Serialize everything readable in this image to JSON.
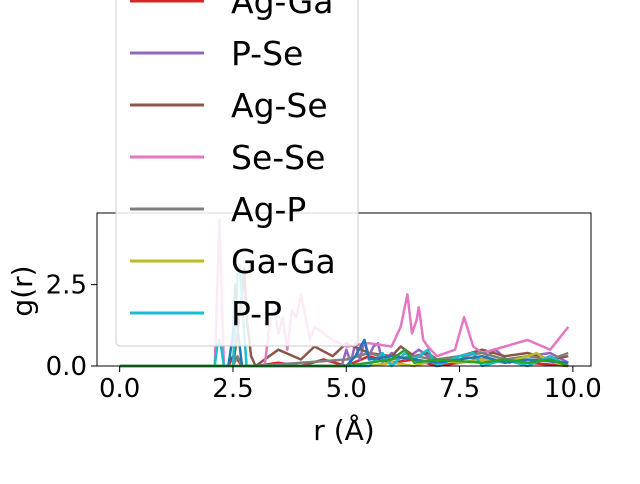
{
  "chart_data": {
    "type": "line",
    "xlabel": "r (Å)",
    "ylabel": "g(r)",
    "xlim": [
      -0.5,
      10.4
    ],
    "ylim": [
      0,
      4.7
    ],
    "xticks": [
      0.0,
      2.5,
      5.0,
      7.5,
      10.0
    ],
    "xtick_labels": [
      "0.0",
      "2.5",
      "5.0",
      "7.5",
      "10.0"
    ],
    "yticks": [
      0.0,
      2.5
    ],
    "ytick_labels": [
      "0.0",
      "2.5"
    ],
    "grid": false,
    "legend_position": "upper-left, overflowing top of axes",
    "series": [
      {
        "name": "Ag-Ga",
        "color": "#d62728",
        "x": [
          0,
          2.2,
          2.4,
          2.5,
          2.6,
          2.7,
          3.0,
          3.5,
          4.0,
          4.5,
          5.0,
          5.5,
          6.0,
          6.5,
          7.0,
          8.0,
          9.0,
          9.9
        ],
        "y": [
          0,
          0,
          0,
          0.3,
          0.2,
          0,
          0,
          0.1,
          0,
          0.2,
          0,
          0.3,
          0.1,
          0.2,
          0,
          0.2,
          0.1,
          0
        ]
      },
      {
        "name": "P-Se",
        "color": "#9467bd",
        "x": [
          0,
          3.0,
          4.9,
          5.0,
          5.1,
          5.2,
          5.3,
          5.4,
          5.5,
          5.6,
          5.7,
          5.8,
          6.0,
          6.3,
          6.6,
          7.0,
          7.5,
          8.0,
          8.3,
          8.6,
          9.0,
          9.5,
          9.9
        ],
        "y": [
          0,
          0,
          0,
          0.5,
          0.1,
          0.7,
          0.2,
          0.8,
          0.3,
          0.6,
          0.7,
          0.1,
          0.4,
          0.2,
          0.5,
          0.1,
          0.3,
          0.2,
          0.5,
          0.1,
          0.3,
          0.4,
          0.1
        ]
      },
      {
        "name": "Ag-Se",
        "color": "#8c564b",
        "x": [
          0,
          2.5,
          2.6,
          2.7,
          2.75,
          2.8,
          2.9,
          3.0,
          3.5,
          4.0,
          4.3,
          4.7,
          5.0,
          5.5,
          6.0,
          6.2,
          6.5,
          6.8,
          7.0,
          7.5,
          8.0,
          8.5,
          9.0,
          9.5,
          9.9
        ],
        "y": [
          0,
          0,
          1.0,
          2.2,
          3.0,
          1.5,
          0.3,
          0,
          0.5,
          0.2,
          0.6,
          0.3,
          0.7,
          0.4,
          0.3,
          0.6,
          0.3,
          0.4,
          0.2,
          0.3,
          0.5,
          0.3,
          0.4,
          0.2,
          0.3
        ]
      },
      {
        "name": "Se-Se",
        "color": "#e377c2",
        "x": [
          0,
          2.1,
          2.2,
          2.3,
          3.2,
          3.3,
          3.4,
          3.5,
          3.6,
          3.7,
          3.8,
          3.9,
          4.0,
          4.2,
          4.3,
          4.5,
          4.7,
          5.0,
          5.5,
          6.0,
          6.2,
          6.35,
          6.45,
          6.55,
          6.6,
          6.7,
          6.8,
          7.0,
          7.4,
          7.6,
          7.8,
          8.0,
          8.5,
          9.0,
          9.5,
          9.9
        ],
        "y": [
          0,
          0,
          4.5,
          0,
          0,
          1.2,
          1.8,
          1.0,
          1.5,
          0.5,
          1.7,
          1.5,
          2.2,
          0.8,
          1.2,
          1.0,
          0.8,
          0.6,
          0.7,
          0.6,
          1.2,
          2.2,
          1.0,
          1.4,
          1.8,
          0.8,
          0.6,
          0.3,
          0.5,
          1.5,
          0.6,
          0.4,
          0.6,
          0.8,
          0.5,
          1.2
        ]
      },
      {
        "name": "Ag-P",
        "color": "#7f7f7f",
        "x": [
          0,
          2.5,
          2.6,
          2.7,
          3.0,
          4.0,
          5.0,
          5.5,
          6.0,
          6.5,
          7.0,
          7.5,
          8.0,
          8.5,
          9.0,
          9.5,
          9.9
        ],
        "y": [
          0,
          0,
          0.3,
          0,
          0,
          0.1,
          0.2,
          0.4,
          0.2,
          0.3,
          0.2,
          0.3,
          0.4,
          0.2,
          0.3,
          0.2,
          0.4
        ]
      },
      {
        "name": "Ga-Ga",
        "color": "#bcbd22",
        "x": [
          0,
          5.5,
          6.0,
          6.5,
          7.0,
          7.5,
          8.0,
          8.5,
          9.0,
          9.2,
          9.4,
          9.6,
          9.9
        ],
        "y": [
          0,
          0,
          0.1,
          0,
          0.2,
          0.1,
          0.2,
          0.1,
          0.3,
          0.4,
          0.2,
          0.1,
          0
        ]
      },
      {
        "name": "P-P",
        "color": "#17becf",
        "x": [
          0,
          2.1,
          2.15,
          2.2,
          2.25,
          2.3,
          2.5,
          2.6,
          2.65,
          2.7,
          2.8,
          3.0,
          5.5,
          5.8,
          6.0,
          6.3,
          6.5,
          6.8,
          7.0,
          7.5,
          7.8,
          8.0,
          8.5,
          9.0,
          9.5,
          9.9
        ],
        "y": [
          0,
          0,
          0.6,
          0.8,
          0.5,
          0,
          0,
          2.8,
          3.1,
          2.0,
          0,
          0,
          0,
          0.4,
          0,
          0.4,
          0.2,
          0.5,
          0,
          0.3,
          0.4,
          0,
          0.2,
          0,
          0.3,
          0
        ]
      },
      {
        "name": "",
        "color": "#1f77b4",
        "x": [
          0,
          2.4,
          2.5,
          2.55,
          2.6,
          2.7,
          5.0,
          5.2,
          5.4,
          5.5,
          6.0,
          7.0,
          8.0,
          8.5,
          9.0,
          9.9
        ],
        "y": [
          0,
          0,
          1.0,
          2.5,
          1.2,
          0,
          0,
          0.3,
          0.8,
          0.2,
          0.3,
          0.1,
          0.3,
          0.1,
          0.2,
          0.1
        ]
      },
      {
        "name": "",
        "color": "#2ca02c",
        "x": [
          0,
          5.0,
          6.0,
          6.3,
          6.5,
          7.0,
          8.0,
          8.5,
          9.0,
          9.5,
          9.9
        ],
        "y": [
          0,
          0,
          0.2,
          0.5,
          0.1,
          0.2,
          0.1,
          0.2,
          0.1,
          0.2,
          0
        ]
      }
    ],
    "legend_entries": [
      {
        "label": "Ag-Ga",
        "color": "#d62728"
      },
      {
        "label": "P-Se",
        "color": "#9467bd"
      },
      {
        "label": "Ag-Se",
        "color": "#8c564b"
      },
      {
        "label": "Se-Se",
        "color": "#e377c2"
      },
      {
        "label": "Ag-P",
        "color": "#7f7f7f"
      },
      {
        "label": "Ga-Ga",
        "color": "#bcbd22"
      },
      {
        "label": "P-P",
        "color": "#17becf"
      }
    ]
  }
}
